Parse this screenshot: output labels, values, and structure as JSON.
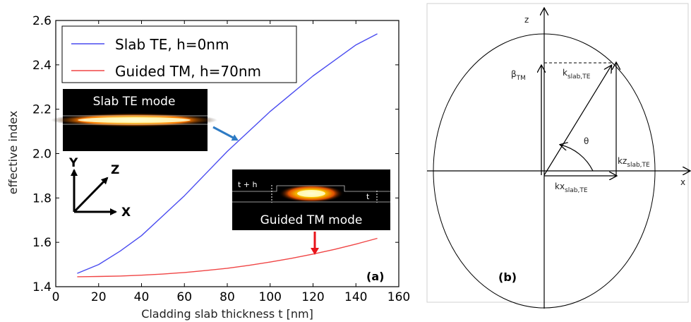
{
  "chart_data": [
    {
      "type": "line",
      "panel_label": "(a)",
      "xlabel": "Cladding slab thickness t [nm]",
      "ylabel": "effective index",
      "xlim": [
        0,
        160
      ],
      "ylim": [
        1.4,
        2.6
      ],
      "xticks": [
        0,
        20,
        40,
        60,
        80,
        100,
        120,
        140,
        160
      ],
      "yticks": [
        1.4,
        1.6,
        1.8,
        2.0,
        2.2,
        2.4,
        2.6
      ],
      "legend_placement": "top-left",
      "series": [
        {
          "name": "Slab TE, h=0nm",
          "color": "#4a4cf0",
          "x": [
            10,
            20,
            30,
            40,
            50,
            60,
            70,
            80,
            90,
            100,
            110,
            120,
            130,
            140,
            150
          ],
          "y": [
            1.46,
            1.5,
            1.56,
            1.63,
            1.72,
            1.81,
            1.91,
            2.01,
            2.1,
            2.19,
            2.27,
            2.35,
            2.42,
            2.49,
            2.54
          ]
        },
        {
          "name": "Guided TM, h=70nm",
          "color": "#f04545",
          "x": [
            10,
            20,
            30,
            40,
            50,
            60,
            70,
            80,
            90,
            100,
            110,
            120,
            130,
            140,
            150
          ],
          "y": [
            1.445,
            1.446,
            1.448,
            1.452,
            1.457,
            1.464,
            1.473,
            1.483,
            1.496,
            1.511,
            1.528,
            1.547,
            1.568,
            1.592,
            1.618
          ]
        }
      ],
      "insets": {
        "slab_te": {
          "label": "Slab TE mode"
        },
        "guided_tm": {
          "label": "Guided TM mode",
          "thickness_label": "t + h",
          "t_label": "t"
        },
        "axes_triad": {
          "y": "Y",
          "z": "Z",
          "x": "X"
        }
      }
    }
  ],
  "diagram": {
    "panel_label": "(b)",
    "z_label": "z",
    "x_label": "x",
    "beta_label": "β",
    "beta_sub": "TM",
    "k_label": "k",
    "k_sub": "slab,TE",
    "theta_label": "θ",
    "kz_label": "kz",
    "kz_sub": "slab,TE",
    "kx_label": "kx",
    "kx_sub": "slab,TE"
  },
  "colors": {
    "te": "#4a4cf0",
    "tm": "#f04545",
    "arrow_blue": "#2e7bc4",
    "arrow_red": "#e8141b"
  }
}
